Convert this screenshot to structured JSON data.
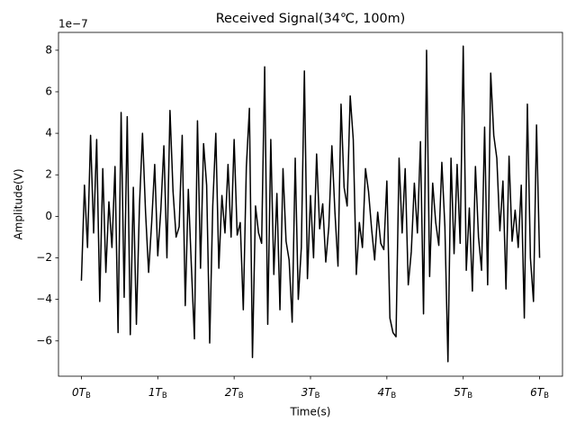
{
  "chart_data": {
    "type": "line",
    "title": "Received Signal(34℃, 100m)",
    "x_label": "Time(s)",
    "y_label": "Amplitude(V)",
    "y_offset_label": "1e−7",
    "color": "#000000",
    "xlim": [
      -0.3,
      6.3
    ],
    "ylim": [
      -7.7,
      8.86
    ],
    "xticks": [
      {
        "value": 0,
        "label": "0T"
      },
      {
        "value": 1,
        "label": "1T"
      },
      {
        "value": 2,
        "label": "2T"
      },
      {
        "value": 3,
        "label": "3T"
      },
      {
        "value": 4,
        "label": "4T"
      },
      {
        "value": 5,
        "label": "5T"
      },
      {
        "value": 6,
        "label": "6T"
      }
    ],
    "xtick_subscript": "B",
    "yticks": [
      {
        "value": -6,
        "label": "−6"
      },
      {
        "value": -4,
        "label": "−4"
      },
      {
        "value": -2,
        "label": "−2"
      },
      0,
      2,
      4,
      6,
      8
    ],
    "x": [
      0,
      0.04,
      0.08,
      0.12,
      0.16,
      0.2,
      0.24,
      0.28,
      0.32,
      0.36,
      0.4,
      0.44,
      0.48,
      0.52,
      0.56,
      0.6,
      0.64,
      0.68,
      0.72,
      0.76,
      0.8,
      0.84,
      0.88,
      0.92,
      0.96,
      1,
      1.04,
      1.08,
      1.12,
      1.16,
      1.2,
      1.24,
      1.28,
      1.32,
      1.36,
      1.4,
      1.44,
      1.48,
      1.52,
      1.56,
      1.6,
      1.64,
      1.68,
      1.72,
      1.76,
      1.8,
      1.84,
      1.88,
      1.92,
      1.96,
      2,
      2.04,
      2.08,
      2.12,
      2.16,
      2.2,
      2.24,
      2.28,
      2.32,
      2.36,
      2.4,
      2.44,
      2.48,
      2.52,
      2.56,
      2.6,
      2.64,
      2.68,
      2.72,
      2.76,
      2.8,
      2.84,
      2.88,
      2.92,
      2.96,
      3,
      3.04,
      3.08,
      3.12,
      3.16,
      3.2,
      3.24,
      3.28,
      3.32,
      3.36,
      3.4,
      3.44,
      3.48,
      3.52,
      3.56,
      3.6,
      3.64,
      3.68,
      3.72,
      3.76,
      3.8,
      3.84,
      3.88,
      3.92,
      3.96,
      4,
      4.04,
      4.08,
      4.12,
      4.16,
      4.2,
      4.24,
      4.28,
      4.32,
      4.36,
      4.4,
      4.44,
      4.48,
      4.52,
      4.56,
      4.6,
      4.64,
      4.68,
      4.72,
      4.76,
      4.8,
      4.84,
      4.88,
      4.92,
      4.96,
      5,
      5.04,
      5.08,
      5.12,
      5.16,
      5.2,
      5.24,
      5.28,
      5.32,
      5.36,
      5.4,
      5.44,
      5.48,
      5.52,
      5.56,
      5.6,
      5.64,
      5.68,
      5.72,
      5.76,
      5.8,
      5.84,
      5.88,
      5.92,
      5.96,
      6
    ],
    "values": [
      -3.1,
      1.5,
      -1.5,
      3.9,
      -0.8,
      3.7,
      -4.1,
      2.3,
      -2.7,
      0.7,
      -1.5,
      2.4,
      -5.6,
      5.0,
      -3.9,
      4.8,
      -5.7,
      1.4,
      -5.2,
      0.5,
      4.0,
      0.2,
      -2.7,
      -0.3,
      2.5,
      -1.9,
      0.3,
      3.4,
      -2.0,
      5.1,
      1.2,
      -1.0,
      -0.5,
      3.9,
      -4.3,
      1.3,
      -2.4,
      -5.9,
      4.6,
      -2.5,
      3.5,
      1.5,
      -6.1,
      0.5,
      4.0,
      -2.5,
      1.0,
      -0.8,
      2.5,
      -1.0,
      3.7,
      -0.9,
      -0.3,
      -4.5,
      2.4,
      5.2,
      -6.8,
      0.5,
      -0.8,
      -1.3,
      7.2,
      -5.2,
      3.7,
      -2.8,
      1.1,
      -4.5,
      2.3,
      -1.2,
      -2.1,
      -5.1,
      2.8,
      -4.0,
      -1.5,
      7.0,
      -3.0,
      1.0,
      -2.0,
      3.0,
      -0.6,
      0.6,
      -2.2,
      -0.5,
      3.4,
      0.2,
      -2.4,
      5.4,
      1.4,
      0.5,
      5.8,
      3.7,
      -2.8,
      -0.3,
      -1.5,
      2.3,
      1.2,
      -0.6,
      -2.1,
      0.2,
      -1.3,
      -1.6,
      1.7,
      -4.9,
      -5.6,
      -5.8,
      2.8,
      -0.8,
      2.3,
      -3.3,
      -1.7,
      1.6,
      -0.8,
      3.6,
      -4.7,
      8.0,
      -2.9,
      1.6,
      -0.3,
      -1.4,
      2.6,
      -0.5,
      -7.0,
      2.8,
      -1.8,
      2.5,
      -1.3,
      8.2,
      -2.6,
      0.4,
      -3.6,
      2.4,
      -1.0,
      -2.6,
      4.3,
      -3.3,
      6.9,
      3.9,
      2.8,
      -0.7,
      1.7,
      -3.5,
      2.9,
      -1.2,
      0.3,
      -1.5,
      1.5,
      -4.9,
      5.4,
      -2.0,
      -4.1,
      4.4,
      -2.0
    ]
  }
}
